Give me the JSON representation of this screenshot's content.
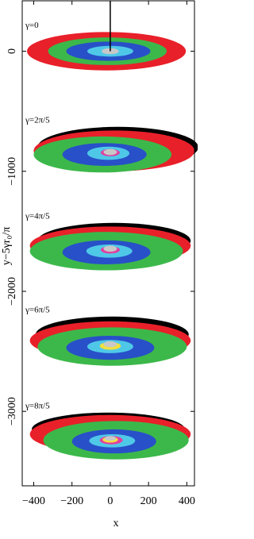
{
  "chart_data": {
    "type": "ellipses",
    "x_label": "x",
    "y_label": "y−5γr₀/π",
    "xlim": [
      -460,
      440
    ],
    "ylim": [
      -3620,
      420
    ],
    "xticks": [
      {
        "value": -400,
        "label": "−400"
      },
      {
        "value": -200,
        "label": "−200"
      },
      0,
      200,
      400
    ],
    "yticks": [
      0,
      {
        "value": -1000,
        "label": "−1000"
      },
      {
        "value": -2000,
        "label": "−2000"
      },
      {
        "value": -3000,
        "label": "−3000"
      }
    ],
    "line": {
      "color": "#000000",
      "x": [
        0,
        0
      ],
      "y": [
        420,
        0
      ]
    },
    "panels": [
      {
        "label": "γ=0",
        "ellipses": [
          {
            "color": "#e8202a",
            "cx": -20,
            "cy": 0,
            "rx": 415,
            "ry": 160
          },
          {
            "color": "#3cb84a",
            "cx": -15,
            "cy": 0,
            "rx": 310,
            "ry": 115
          },
          {
            "color": "#2850c8",
            "cx": -10,
            "cy": 0,
            "rx": 220,
            "ry": 80
          },
          {
            "color": "#4fc8e8",
            "cx": 0,
            "cy": 0,
            "rx": 120,
            "ry": 45
          },
          {
            "color": "#c8c8c8",
            "cx": 0,
            "cy": 0,
            "rx": 45,
            "ry": 25
          }
        ]
      },
      {
        "label": "γ=2π/5",
        "ellipses": [
          {
            "color": "#000000",
            "cx": 40,
            "cy": -800,
            "rx": 420,
            "ry": 170
          },
          {
            "color": "#e8202a",
            "cx": 20,
            "cy": -830,
            "rx": 420,
            "ry": 170
          },
          {
            "color": "#3cb84a",
            "cx": -40,
            "cy": -860,
            "rx": 360,
            "ry": 150
          },
          {
            "color": "#2850c8",
            "cx": -30,
            "cy": -860,
            "rx": 220,
            "ry": 95
          },
          {
            "color": "#4fc8e8",
            "cx": -10,
            "cy": -850,
            "rx": 110,
            "ry": 55
          },
          {
            "color": "#e040a0",
            "cx": 0,
            "cy": -845,
            "rx": 50,
            "ry": 30
          },
          {
            "color": "#c8c8c8",
            "cx": 0,
            "cy": -840,
            "rx": 35,
            "ry": 25
          }
        ]
      },
      {
        "label": "γ=4π/5",
        "ellipses": [
          {
            "color": "#000000",
            "cx": 20,
            "cy": -1580,
            "rx": 400,
            "ry": 150
          },
          {
            "color": "#e8202a",
            "cx": 0,
            "cy": -1620,
            "rx": 420,
            "ry": 160
          },
          {
            "color": "#3cb84a",
            "cx": -20,
            "cy": -1665,
            "rx": 400,
            "ry": 160
          },
          {
            "color": "#2850c8",
            "cx": -20,
            "cy": -1675,
            "rx": 230,
            "ry": 100
          },
          {
            "color": "#4fc8e8",
            "cx": -5,
            "cy": -1665,
            "rx": 120,
            "ry": 55
          },
          {
            "color": "#e040a0",
            "cx": 0,
            "cy": -1655,
            "rx": 50,
            "ry": 30
          },
          {
            "color": "#c8c8c8",
            "cx": 0,
            "cy": -1645,
            "rx": 35,
            "ry": 25
          }
        ]
      },
      {
        "label": "γ=6π/5",
        "ellipses": [
          {
            "color": "#000000",
            "cx": 10,
            "cy": -2360,
            "rx": 400,
            "ry": 150
          },
          {
            "color": "#e8202a",
            "cx": 0,
            "cy": -2410,
            "rx": 420,
            "ry": 160
          },
          {
            "color": "#3cb84a",
            "cx": 10,
            "cy": -2460,
            "rx": 390,
            "ry": 160
          },
          {
            "color": "#2850c8",
            "cx": 0,
            "cy": -2470,
            "rx": 230,
            "ry": 100
          },
          {
            "color": "#4fc8e8",
            "cx": 0,
            "cy": -2460,
            "rx": 120,
            "ry": 55
          },
          {
            "color": "#f0e040",
            "cx": 0,
            "cy": -2455,
            "rx": 55,
            "ry": 32
          },
          {
            "color": "#c8c8c8",
            "cx": 0,
            "cy": -2440,
            "rx": 35,
            "ry": 25
          }
        ]
      },
      {
        "label": "γ=8π/5",
        "ellipses": [
          {
            "color": "#000000",
            "cx": -10,
            "cy": -3150,
            "rx": 400,
            "ry": 140
          },
          {
            "color": "#e8202a",
            "cx": 0,
            "cy": -3190,
            "rx": 420,
            "ry": 160
          },
          {
            "color": "#3cb84a",
            "cx": 30,
            "cy": -3240,
            "rx": 380,
            "ry": 160
          },
          {
            "color": "#2850c8",
            "cx": 20,
            "cy": -3250,
            "rx": 220,
            "ry": 100
          },
          {
            "color": "#4fc8e8",
            "cx": 10,
            "cy": -3245,
            "rx": 120,
            "ry": 55
          },
          {
            "color": "#e040a0",
            "cx": 5,
            "cy": -3240,
            "rx": 60,
            "ry": 35
          },
          {
            "color": "#f0e040",
            "cx": 0,
            "cy": -3235,
            "rx": 40,
            "ry": 25
          },
          {
            "color": "#c8c8c8",
            "cx": 0,
            "cy": -3225,
            "rx": 30,
            "ry": 20
          }
        ]
      }
    ]
  }
}
